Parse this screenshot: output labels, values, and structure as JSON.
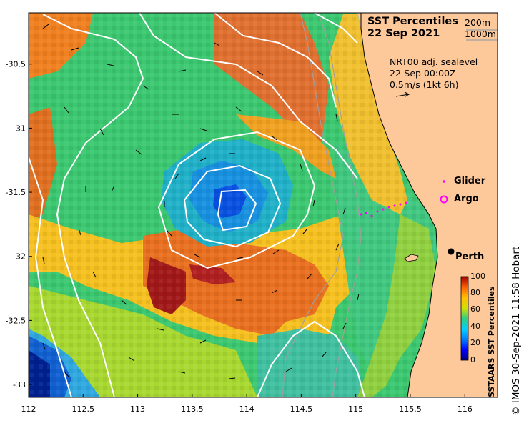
{
  "title": {
    "line1": "SST Percentiles",
    "line2": "22 Sep 2021"
  },
  "depth_contours": [
    "200m",
    "1000m"
  ],
  "vector_info": {
    "line1": "NRT00 adj. sealevel",
    "line2": "22-Sep 00:00Z",
    "line3": "0.5m/s (1kt 6h)"
  },
  "legend": {
    "glider": "Glider",
    "argo": "Argo"
  },
  "place": {
    "name": "Perth",
    "lon": 115.86,
    "lat": -31.95
  },
  "colorbar": {
    "title": "SSTAARS SST Percentiles",
    "ticks": [
      "100",
      "80",
      "60",
      "40",
      "20",
      "0"
    ]
  },
  "credit": "© IMOS 30-Sep-2021 11:58 Hobart",
  "axes": {
    "xlim": [
      112.0,
      116.3
    ],
    "ylim": [
      -33.1,
      -30.1
    ],
    "xticks": [
      "112",
      "112.5",
      "113",
      "113.5",
      "114",
      "114.5",
      "115",
      "115.5",
      "116"
    ],
    "yticks": [
      "-30.5",
      "-31",
      "-31.5",
      "-32",
      "-32.5",
      "-33"
    ]
  },
  "colors": {
    "land": "#fdc89a",
    "glider": "#ff00ff",
    "argo": "#ff00ff",
    "contour": "#ffffff",
    "isobath": "#a0a0a0"
  }
}
